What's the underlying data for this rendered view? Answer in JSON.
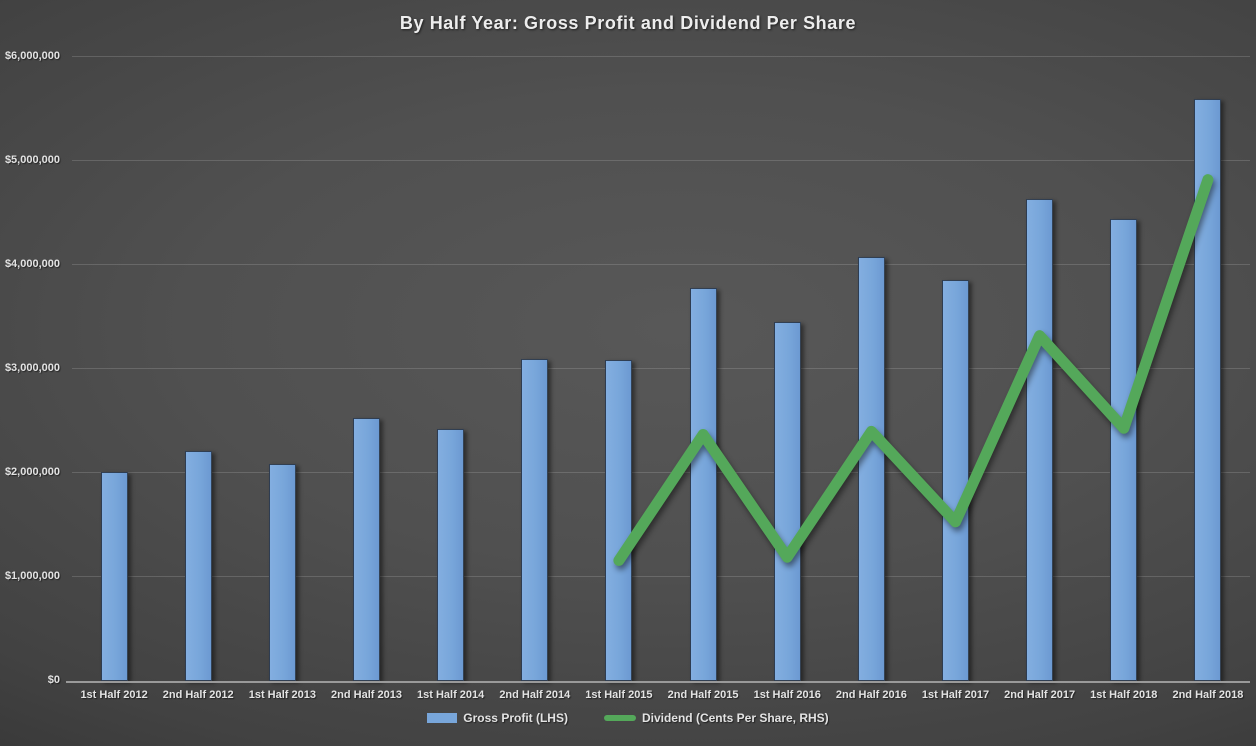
{
  "title": "By Half Year:  Gross Profit and Dividend Per Share",
  "colors": {
    "bar_fill": "#78A6DA",
    "line": "#54A85A",
    "background_center": "#585858",
    "background_edge": "#1F1F1F",
    "gridline": "rgba(210,210,210,0.20)",
    "zero_axis_line": "#9A9A9A",
    "text": "#E3E3E3"
  },
  "y_axis": {
    "prefix": "$",
    "min": 0,
    "max": 6000000,
    "step": 1000000,
    "tick_labels": [
      "$6,000,000",
      "$5,000,000",
      "$4,000,000",
      "$3,000,000",
      "$2,000,000",
      "$1,000,000",
      "$0"
    ]
  },
  "legend": {
    "items": [
      {
        "label": "Gross Profit (LHS)",
        "swatch": "bar",
        "color": "#78A6DA"
      },
      {
        "label": "Dividend (Cents Per Share, RHS)",
        "swatch": "line",
        "color": "#54A85A"
      }
    ],
    "position": "bottom"
  },
  "chart_data": {
    "type": "bar",
    "subtype": "combo-bar-line",
    "title": "By Half Year:  Gross Profit and Dividend Per Share",
    "categories": [
      "1st Half 2012",
      "2nd Half 2012",
      "1st Half 2013",
      "2nd Half 2013",
      "1st Half 2014",
      "2nd Half 2014",
      "1st Half 2015",
      "2nd Half 2015",
      "1st Half 2016",
      "2nd Half 2016",
      "1st Half 2017",
      "2nd Half 2017",
      "1st Half 2018",
      "2nd Half 2018"
    ],
    "series": [
      {
        "name": "Gross Profit (LHS)",
        "type": "bar",
        "axis": "left",
        "values": [
          2010000,
          2210000,
          2090000,
          2530000,
          2420000,
          3100000,
          3090000,
          3780000,
          3450000,
          4080000,
          3860000,
          4630000,
          4440000,
          5600000
        ]
      },
      {
        "name": "Dividend (Cents Per Share, RHS)",
        "type": "line",
        "axis": "right",
        "note": "Right-hand axis is not displayed in the image; values are the plotted positions expressed on the left axis scale.",
        "values_lhs_equivalent": [
          null,
          null,
          null,
          null,
          null,
          null,
          1160000,
          2370000,
          1190000,
          2400000,
          1530000,
          3320000,
          2430000,
          4820000
        ]
      }
    ],
    "ylim_left": [
      0,
      6000000
    ],
    "xlabel": "",
    "ylabel": "",
    "grid": "horizontal",
    "legend_position": "bottom"
  }
}
